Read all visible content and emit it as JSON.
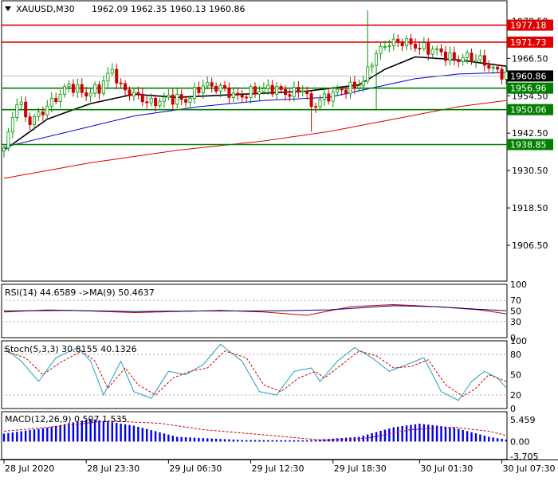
{
  "header": {
    "symbol": "XAUUSD,M30",
    "ohlc": "1962.09 1962.35 1960.13 1960.86"
  },
  "colors": {
    "background": "#ffffff",
    "candle_up": "#009900",
    "candle_down": "#cc0000",
    "level_red": "#e00000",
    "level_green": "#008000",
    "ma_fast": "#000000",
    "ma_mid": "#0000cc",
    "ma_slow": "#dd0000",
    "rsi_line": "#cc0000",
    "rsi_ma": "#000080",
    "stoch_main": "#20a0c0",
    "stoch_signal": "#cc0000",
    "macd_hist": "#0000ee",
    "macd_signal": "#cc0000",
    "price_tag": "#000000"
  },
  "chart_data": [
    {
      "type": "candlestick",
      "title": "XAUUSD,M30",
      "ylim": [
        1895,
        1985
      ],
      "y_ticks": [
        "1978.50",
        "1966.50",
        "1954.50",
        "1942.50",
        "1930.50",
        "1918.50",
        "1906.50"
      ],
      "y_tick_values": [
        1978.5,
        1966.5,
        1954.5,
        1942.5,
        1930.5,
        1918.5,
        1906.5
      ],
      "current_price": "1960.86",
      "current_price_value": 1960.86,
      "levels": [
        {
          "label": "1977.18",
          "value": 1977.18,
          "color": "red"
        },
        {
          "label": "1971.73",
          "value": 1971.73,
          "color": "red"
        },
        {
          "label": "1956.96",
          "value": 1956.96,
          "color": "green"
        },
        {
          "label": "1950.06",
          "value": 1950.06,
          "color": "green"
        },
        {
          "label": "1938.85",
          "value": 1938.85,
          "color": "green"
        }
      ],
      "x_labels": [
        "28 Jul 2020",
        "28 Jul 23:30",
        "29 Jul 06:30",
        "29 Jul 12:30",
        "29 Jul 18:30",
        "30 Jul 01:30",
        "30 Jul 07:30"
      ],
      "x_label_bar_index": [
        0,
        19,
        38,
        57,
        76,
        96,
        115
      ],
      "bar_count": 117,
      "anchors": [
        [
          0,
          1937
        ],
        [
          3,
          1953
        ],
        [
          6,
          1946
        ],
        [
          10,
          1951
        ],
        [
          15,
          1958
        ],
        [
          19,
          1955
        ],
        [
          22,
          1957
        ],
        [
          25,
          1963
        ],
        [
          27,
          1957
        ],
        [
          30,
          1955
        ],
        [
          34,
          1952
        ],
        [
          38,
          1954
        ],
        [
          42,
          1953
        ],
        [
          46,
          1958
        ],
        [
          50,
          1957
        ],
        [
          54,
          1954
        ],
        [
          58,
          1956
        ],
        [
          62,
          1957
        ],
        [
          66,
          1955
        ],
        [
          69,
          1957
        ],
        [
          71,
          1951
        ],
        [
          73,
          1953
        ],
        [
          77,
          1956
        ],
        [
          80,
          1957
        ],
        [
          83,
          1959
        ],
        [
          85,
          1966
        ],
        [
          88,
          1971
        ],
        [
          92,
          1972
        ],
        [
          96,
          1970
        ],
        [
          100,
          1969
        ],
        [
          104,
          1966
        ],
        [
          107,
          1967
        ],
        [
          110,
          1966
        ],
        [
          113,
          1963
        ],
        [
          116,
          1961
        ]
      ],
      "spikes": [
        {
          "bar": 84,
          "high": 1982
        },
        {
          "bar": 71,
          "low": 1943
        },
        {
          "bar": 86,
          "low": 1950
        }
      ],
      "moving_averages": [
        {
          "color": "black",
          "points": [
            [
              0,
              1937
            ],
            [
              10,
              1947
            ],
            [
              20,
              1952
            ],
            [
              30,
              1955
            ],
            [
              40,
              1954
            ],
            [
              55,
              1955
            ],
            [
              70,
              1956
            ],
            [
              82,
              1958
            ],
            [
              88,
              1963
            ],
            [
              95,
              1967
            ],
            [
              105,
              1966
            ],
            [
              116,
              1964
            ]
          ]
        },
        {
          "color": "blue",
          "points": [
            [
              0,
              1938
            ],
            [
              15,
              1943
            ],
            [
              30,
              1948
            ],
            [
              45,
              1951
            ],
            [
              60,
              1953
            ],
            [
              75,
              1954
            ],
            [
              85,
              1957
            ],
            [
              95,
              1960
            ],
            [
              105,
              1961.5
            ],
            [
              116,
              1962
            ]
          ]
        },
        {
          "color": "red",
          "points": [
            [
              0,
              1928
            ],
            [
              20,
              1933
            ],
            [
              40,
              1937
            ],
            [
              60,
              1940
            ],
            [
              75,
              1943
            ],
            [
              90,
              1947
            ],
            [
              105,
              1951
            ],
            [
              116,
              1953
            ]
          ]
        }
      ]
    },
    {
      "type": "line",
      "title": "RSI(14) 44.6589 ->MA(9) 50.4637",
      "ylim": [
        0,
        100
      ],
      "y_ticks": [
        "100",
        "70",
        "50",
        "30",
        "0"
      ],
      "y_tick_values": [
        100,
        70,
        50,
        30,
        0
      ],
      "levels": [
        70,
        30
      ],
      "series": [
        {
          "color": "red",
          "points": [
            [
              0,
              48
            ],
            [
              10,
              52
            ],
            [
              20,
              50
            ],
            [
              30,
              47
            ],
            [
              40,
              49
            ],
            [
              50,
              51
            ],
            [
              60,
              48
            ],
            [
              70,
              42
            ],
            [
              80,
              58
            ],
            [
              90,
              62
            ],
            [
              100,
              58
            ],
            [
              110,
              52
            ],
            [
              116,
              44.66
            ]
          ]
        },
        {
          "color": "navy",
          "points": [
            [
              0,
              50
            ],
            [
              15,
              51
            ],
            [
              30,
              49
            ],
            [
              45,
              50
            ],
            [
              60,
              50
            ],
            [
              75,
              52
            ],
            [
              90,
              60
            ],
            [
              100,
              58
            ],
            [
              110,
              53
            ],
            [
              116,
              50.46
            ]
          ]
        }
      ]
    },
    {
      "type": "line",
      "title": "Stoch(5,3,3) 30.8155 40.1326",
      "ylim": [
        0,
        100
      ],
      "y_ticks": [
        "100",
        "80",
        "50",
        "20",
        "0"
      ],
      "y_tick_values": [
        100,
        80,
        50,
        20,
        0
      ],
      "levels": [
        80,
        20
      ],
      "series": [
        {
          "color": "teal",
          "points": [
            [
              0,
              90
            ],
            [
              4,
              70
            ],
            [
              8,
              40
            ],
            [
              12,
              75
            ],
            [
              17,
              90
            ],
            [
              20,
              70
            ],
            [
              23,
              20
            ],
            [
              27,
              70
            ],
            [
              30,
              25
            ],
            [
              34,
              15
            ],
            [
              38,
              55
            ],
            [
              42,
              50
            ],
            [
              46,
              65
            ],
            [
              50,
              95
            ],
            [
              55,
              70
            ],
            [
              59,
              25
            ],
            [
              63,
              20
            ],
            [
              67,
              55
            ],
            [
              71,
              60
            ],
            [
              73,
              40
            ],
            [
              77,
              70
            ],
            [
              81,
              90
            ],
            [
              85,
              75
            ],
            [
              89,
              55
            ],
            [
              93,
              65
            ],
            [
              97,
              75
            ],
            [
              101,
              25
            ],
            [
              105,
              12
            ],
            [
              108,
              40
            ],
            [
              111,
              55
            ],
            [
              114,
              45
            ],
            [
              116,
              30.82
            ]
          ]
        },
        {
          "color": "red",
          "points": [
            [
              0,
              85
            ],
            [
              5,
              75
            ],
            [
              9,
              50
            ],
            [
              13,
              68
            ],
            [
              18,
              85
            ],
            [
              21,
              70
            ],
            [
              24,
              30
            ],
            [
              28,
              60
            ],
            [
              31,
              35
            ],
            [
              35,
              20
            ],
            [
              39,
              45
            ],
            [
              43,
              55
            ],
            [
              47,
              60
            ],
            [
              51,
              85
            ],
            [
              56,
              75
            ],
            [
              60,
              35
            ],
            [
              64,
              25
            ],
            [
              68,
              45
            ],
            [
              72,
              55
            ],
            [
              74,
              45
            ],
            [
              78,
              65
            ],
            [
              82,
              85
            ],
            [
              86,
              78
            ],
            [
              90,
              60
            ],
            [
              94,
              62
            ],
            [
              98,
              72
            ],
            [
              102,
              35
            ],
            [
              106,
              18
            ],
            [
              109,
              30
            ],
            [
              112,
              50
            ],
            [
              116,
              40.13
            ]
          ]
        }
      ]
    },
    {
      "type": "bar",
      "title": "MACD(12,26,9) 0.507 1.535",
      "ylim": [
        -4.5,
        7.5
      ],
      "y_ticks": [
        "5.459",
        "0.00",
        "-3.705"
      ],
      "y_tick_values": [
        5.459,
        0,
        -3.705
      ],
      "histogram": [
        [
          0,
          2
        ],
        [
          10,
          3.5
        ],
        [
          20,
          5.7
        ],
        [
          30,
          4
        ],
        [
          40,
          1.2
        ],
        [
          55,
          0.4
        ],
        [
          70,
          0.3
        ],
        [
          82,
          1.2
        ],
        [
          90,
          3.6
        ],
        [
          96,
          4.5
        ],
        [
          104,
          3.5
        ],
        [
          112,
          1.2
        ],
        [
          116,
          0.51
        ]
      ],
      "signal": [
        [
          0,
          2.6
        ],
        [
          12,
          3.8
        ],
        [
          24,
          5.2
        ],
        [
          36,
          4.6
        ],
        [
          46,
          3.0
        ],
        [
          60,
          1.7
        ],
        [
          74,
          0.3
        ],
        [
          84,
          0.9
        ],
        [
          94,
          3.0
        ],
        [
          104,
          3.6
        ],
        [
          112,
          2.6
        ],
        [
          116,
          1.54
        ]
      ]
    }
  ]
}
